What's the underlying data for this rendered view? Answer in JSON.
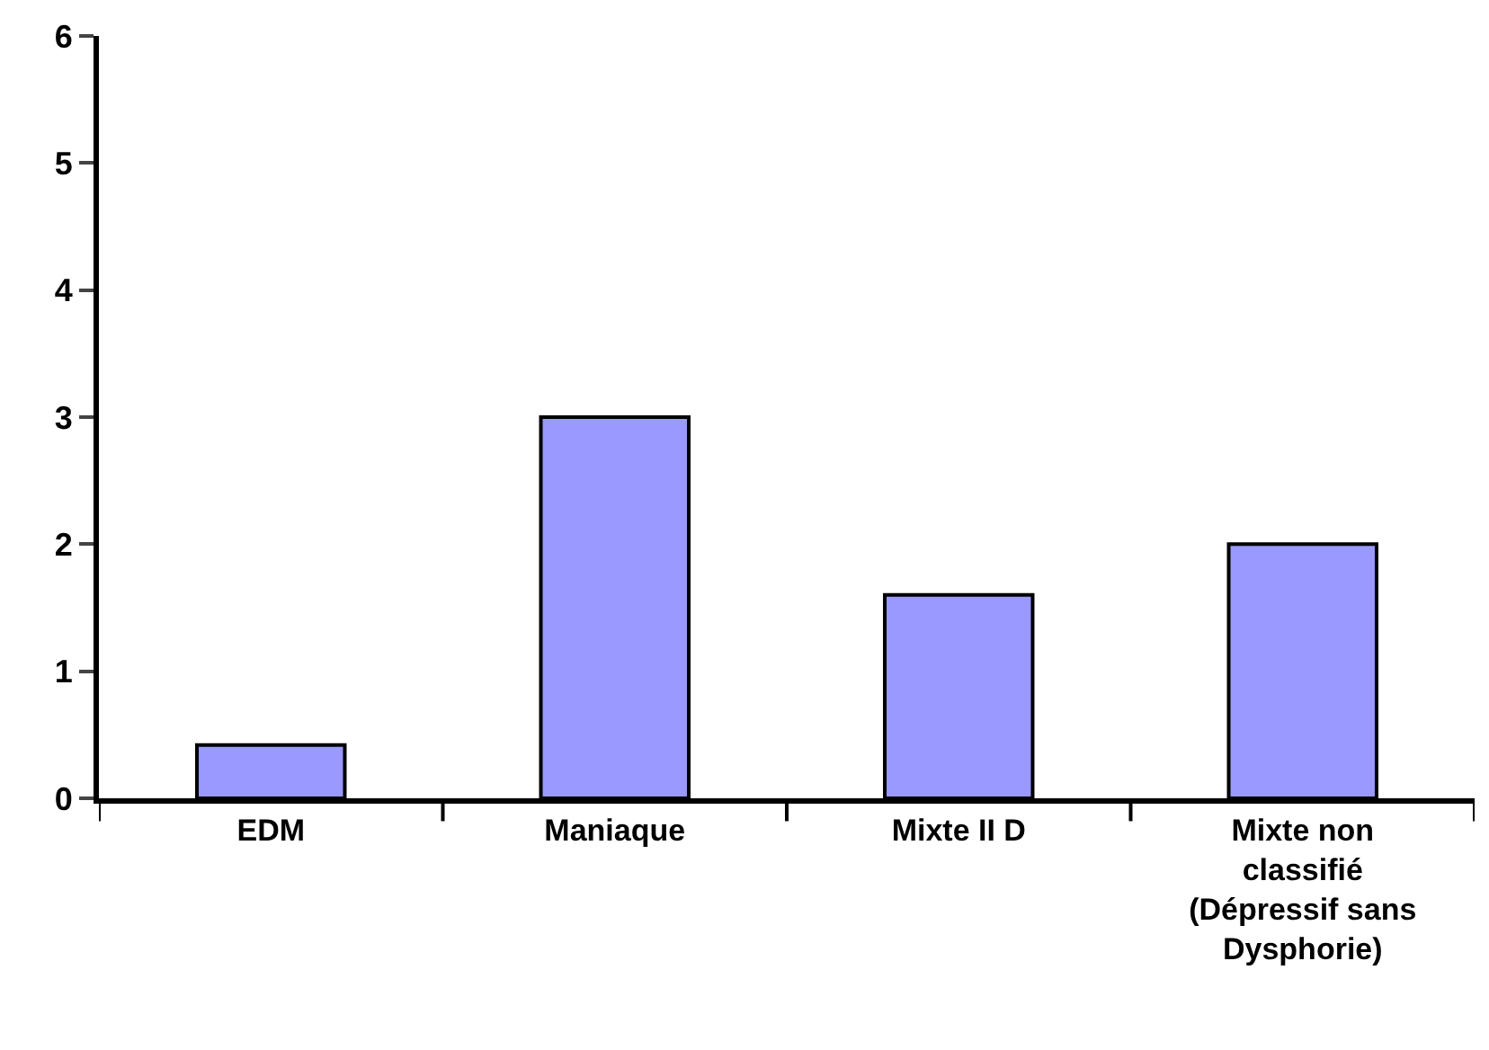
{
  "chart_data": {
    "type": "bar",
    "categories": [
      "EDM",
      "Maniaque",
      "Mixte II D",
      "Mixte non classifié (Dépressif sans Dysphorie)"
    ],
    "values": [
      0.42,
      3.0,
      1.6,
      2.0
    ],
    "color": "#9999ff",
    "ylim": [
      0,
      6
    ],
    "yticks": [
      0,
      1,
      2,
      3,
      4,
      5,
      6
    ]
  }
}
